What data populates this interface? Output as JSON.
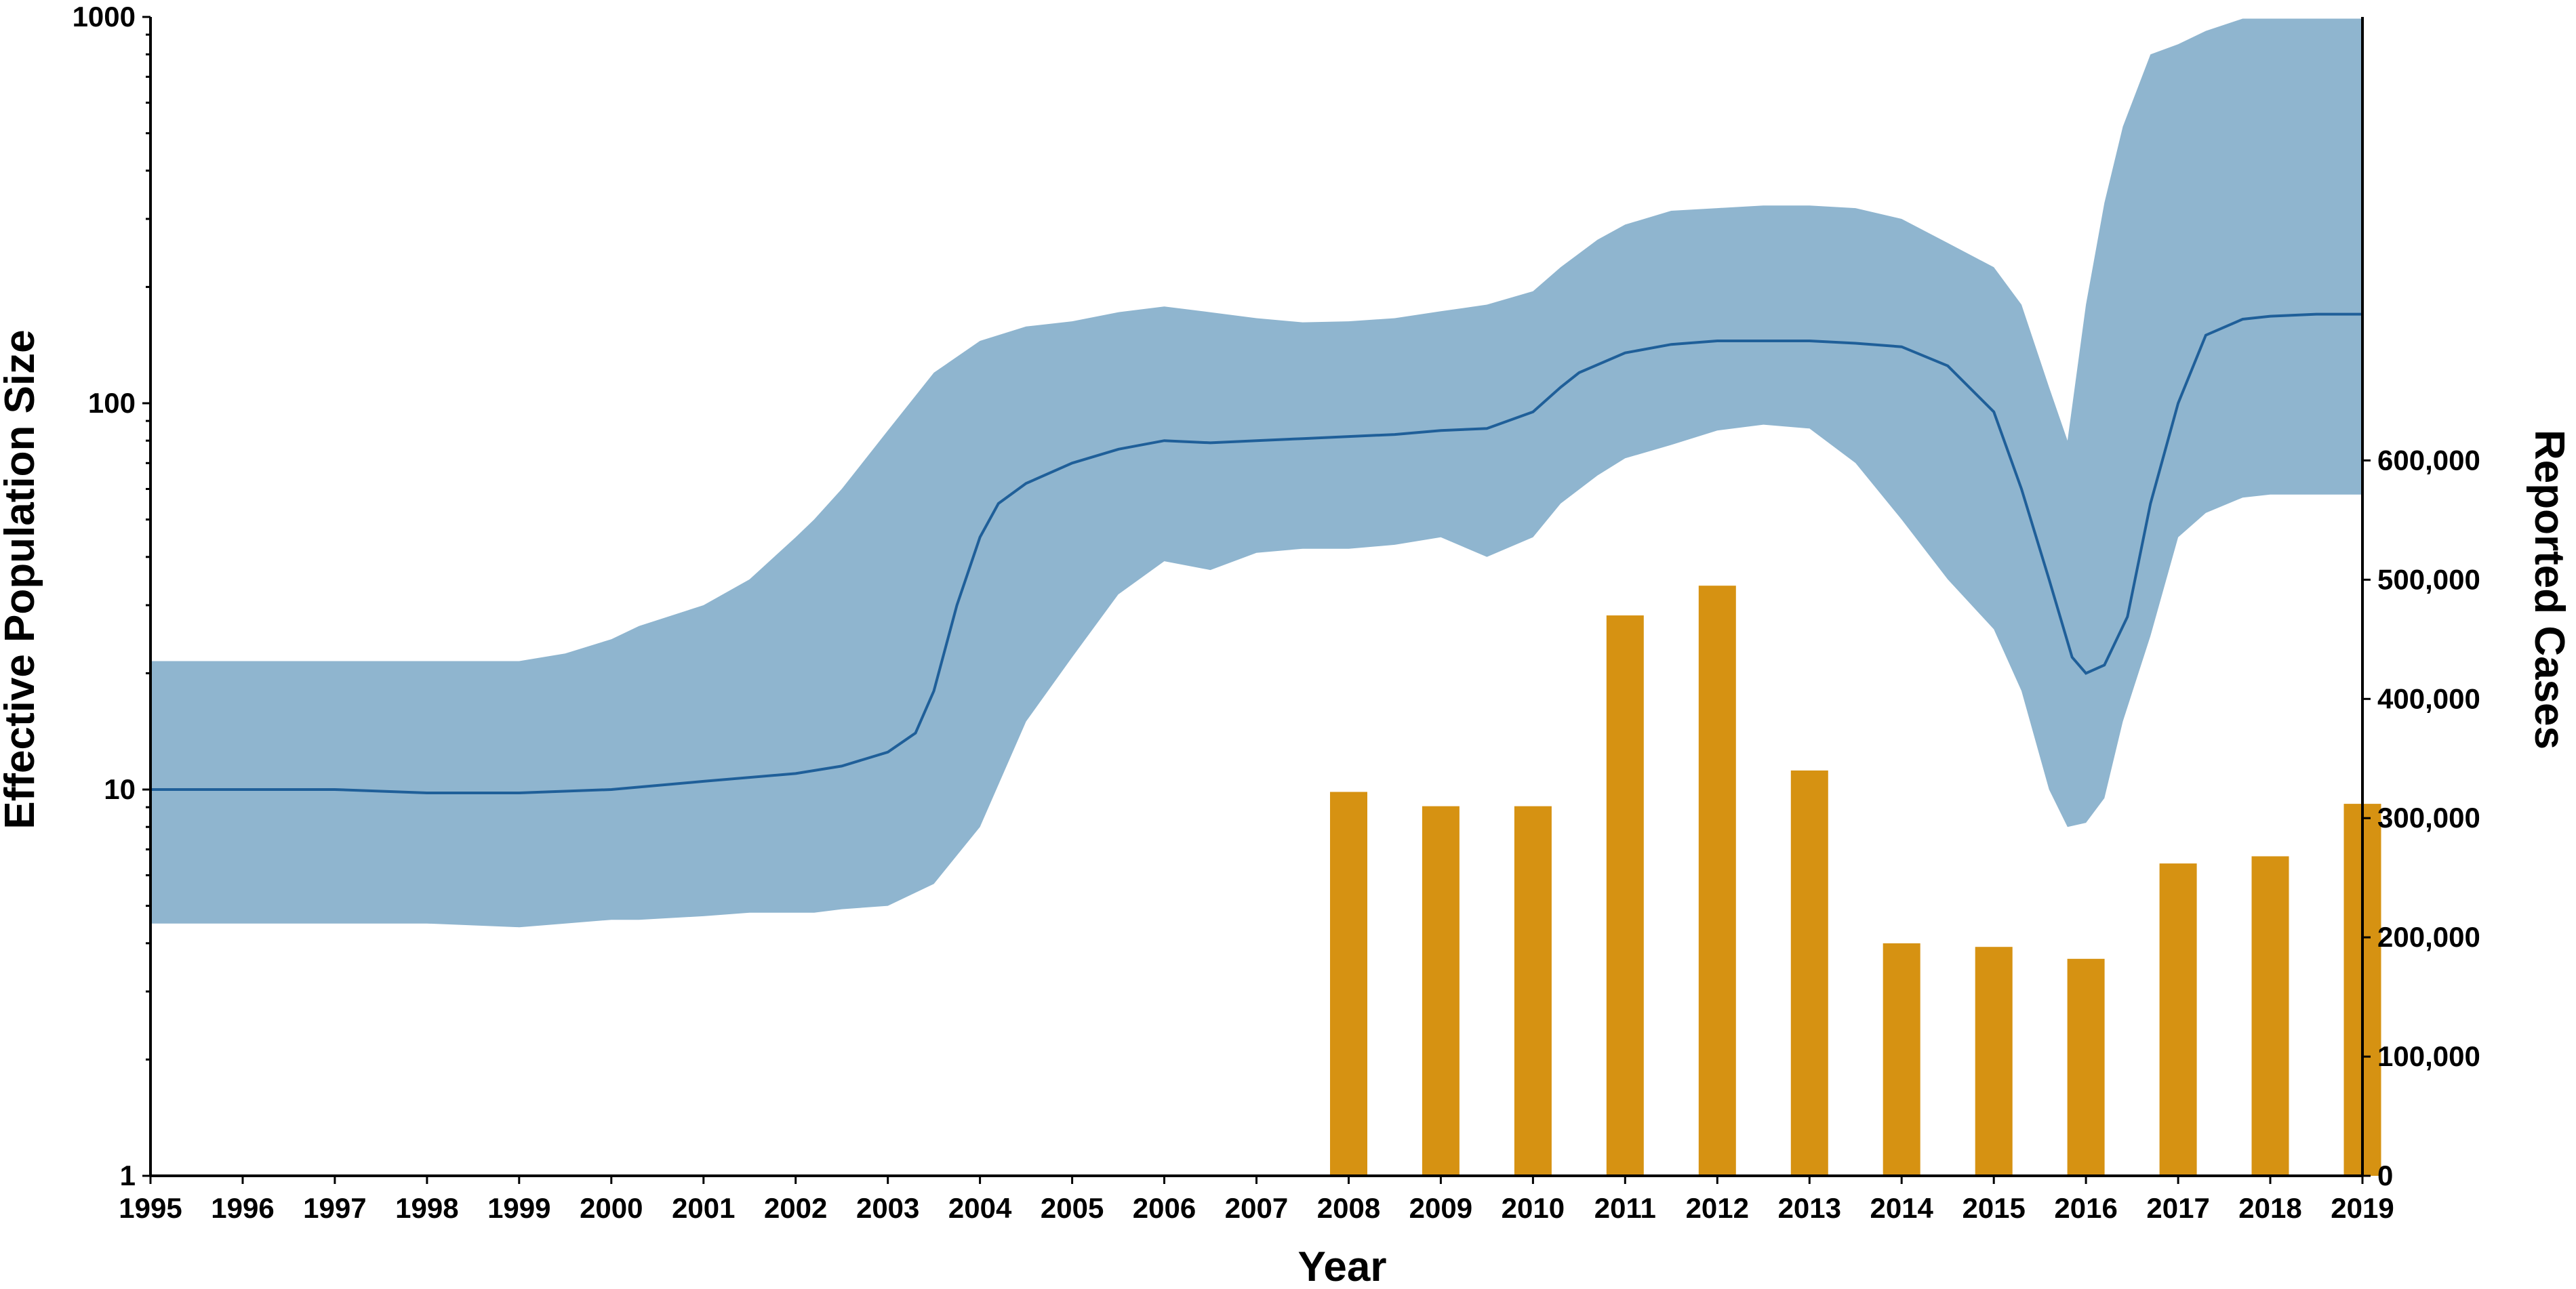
{
  "chart_data": {
    "type": "area",
    "xlabel": "Year",
    "ylabel": "Effective Population Size",
    "y2label": "Reported Cases",
    "x_ticks": [
      "1995",
      "1996",
      "1997",
      "1998",
      "1999",
      "2000",
      "2001",
      "2002",
      "2003",
      "2004",
      "2005",
      "2006",
      "2007",
      "2008",
      "2009",
      "2010",
      "2011",
      "2012",
      "2013",
      "2014",
      "2015",
      "2016",
      "2017",
      "2018",
      "2019"
    ],
    "xlim": [
      1995,
      2019
    ],
    "ylim": [
      1,
      1000
    ],
    "y_scale": "log",
    "y_ticks": [
      "1",
      "10",
      "100",
      "1000"
    ],
    "y_tick_values": [
      1,
      10,
      100,
      1000
    ],
    "y2lim": [
      0,
      972000
    ],
    "y2_ticks": [
      "0",
      "100,000",
      "200,000",
      "300,000",
      "400,000",
      "500,000",
      "600,000"
    ],
    "y2_tick_values": [
      0,
      100000,
      200000,
      300000,
      400000,
      500000,
      600000
    ],
    "colors": {
      "band": "#8fb5cf",
      "median": "#1f5f99",
      "bars": "#d69212"
    },
    "series": [
      {
        "type": "band",
        "x": [
          1995,
          1996,
          1997,
          1998,
          1999,
          1999.5,
          2000,
          2000.3,
          2001,
          2001.5,
          2002,
          2002.2,
          2002.5,
          2003,
          2003.5,
          2004,
          2004.5,
          2005,
          2005.5,
          2006,
          2006.5,
          2007,
          2007.5,
          2008,
          2008.5,
          2009,
          2009.5,
          2010,
          2010.3,
          2010.7,
          2011,
          2011.5,
          2012,
          2012.5,
          2013,
          2013.5,
          2014,
          2014.5,
          2015,
          2015.3,
          2015.6,
          2015.8,
          2016,
          2016.2,
          2016.4,
          2016.7,
          2017,
          2017.3,
          2017.7,
          2018,
          2018.5,
          2019
        ],
        "upper": [
          21.5,
          21.5,
          21.5,
          21.5,
          21.5,
          22.5,
          24.5,
          26.5,
          30,
          35,
          45,
          50,
          60,
          85,
          120,
          145,
          158,
          163,
          172,
          178,
          172,
          166,
          162,
          163,
          166,
          173,
          180,
          195,
          225,
          265,
          290,
          315,
          320,
          325,
          325,
          320,
          300,
          260,
          225,
          180,
          110,
          80,
          180,
          330,
          520,
          800,
          850,
          920,
          990,
          990,
          990,
          990
        ],
        "lower": [
          4.5,
          4.5,
          4.5,
          4.5,
          4.4,
          4.5,
          4.6,
          4.6,
          4.7,
          4.8,
          4.8,
          4.8,
          4.9,
          5,
          5.7,
          8,
          15,
          22,
          32,
          39,
          37,
          41,
          42,
          42,
          43,
          45,
          40,
          45,
          55,
          65,
          72,
          78,
          85,
          88,
          86,
          70,
          50,
          35,
          26,
          18,
          10,
          8,
          8.2,
          9.5,
          15,
          25,
          45,
          52,
          57,
          58,
          58,
          58
        ]
      },
      {
        "type": "line",
        "name": "",
        "x": [
          1995,
          1996,
          1997,
          1998,
          1999,
          2000,
          2001,
          2002,
          2002.5,
          2003,
          2003.3,
          2003.5,
          2003.75,
          2004,
          2004.2,
          2004.5,
          2005,
          2005.5,
          2006,
          2006.5,
          2007,
          2007.5,
          2008,
          2008.5,
          2009,
          2009.5,
          2010,
          2010.3,
          2010.5,
          2011,
          2011.5,
          2012,
          2012.5,
          2013,
          2013.5,
          2014,
          2014.5,
          2015,
          2015.3,
          2015.6,
          2015.85,
          2016,
          2016.2,
          2016.45,
          2016.7,
          2017,
          2017.3,
          2017.7,
          2018,
          2018.5,
          2019
        ],
        "values": [
          10,
          10,
          10,
          9.8,
          9.8,
          10,
          10.5,
          11,
          11.5,
          12.5,
          14,
          18,
          30,
          45,
          55,
          62,
          70,
          76,
          80,
          79,
          80,
          81,
          82,
          83,
          85,
          86,
          95,
          110,
          120,
          135,
          142,
          145,
          145,
          145,
          143,
          140,
          125,
          95,
          60,
          35,
          22,
          20,
          21,
          28,
          55,
          100,
          150,
          165,
          168,
          170,
          170
        ]
      },
      {
        "type": "bar",
        "name": "",
        "axis": "y2",
        "x": [
          2008,
          2009,
          2010,
          2011,
          2012,
          2013,
          2014,
          2015,
          2016,
          2017,
          2018,
          2019
        ],
        "values": [
          322000,
          310000,
          310000,
          470000,
          495000,
          340000,
          195000,
          192000,
          182000,
          262000,
          268000,
          312000
        ]
      }
    ]
  }
}
